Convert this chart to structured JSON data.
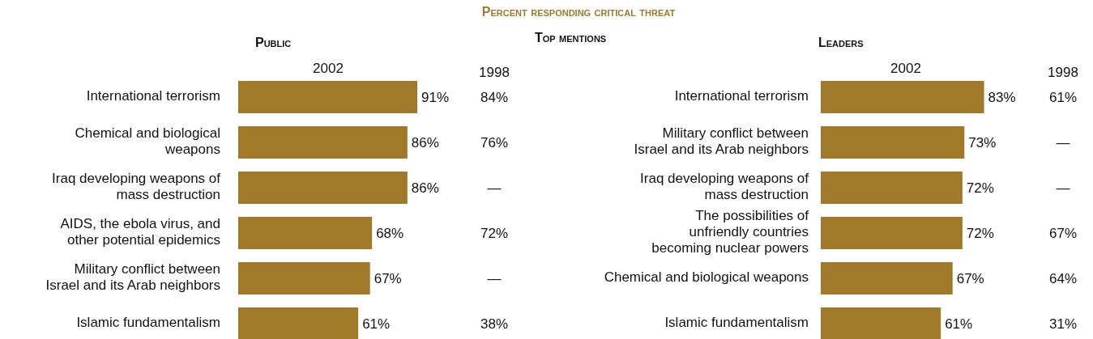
{
  "chart_data": [
    {
      "type": "bar",
      "orientation": "horizontal",
      "title": "Public",
      "annotations": [
        "Percent responding critical threat",
        "Top mentions",
        "1998",
        "84%",
        "76%",
        "—",
        "72%",
        "—",
        "38%"
      ],
      "categories": [
        "International terrorism",
        "Chemical and biological\nweapons",
        "Iraq developing weapons of\nmass destruction",
        "AIDS, the ebola virus, and\nother potential epidemics",
        "Military conflict between\nIsrael and its Arab neighbors",
        "Islamic fundamentalism"
      ],
      "series": [
        {
          "name": "2002",
          "color": "#a07a2a",
          "values": [
            91,
            86,
            86,
            68,
            67,
            61
          ],
          "value_labels": [
            "91%",
            "86%",
            "86%",
            "68%",
            "67%",
            "61%"
          ]
        }
      ]
    },
    {
      "type": "bar",
      "orientation": "horizontal",
      "title": "Leaders",
      "annotations": [
        "1998",
        "61%",
        "—",
        "—",
        "67%",
        "64%",
        "31%"
      ],
      "categories": [
        "International terrorism",
        "Military conflict between\nIsrael and its Arab neighbors",
        "Iraq developing weapons of\nmass destruction",
        "The possibilities of\nunfriendly countries\nbecoming nuclear powers",
        "Chemical and biological weapons",
        "Islamic fundamentalism"
      ],
      "series": [
        {
          "name": "2002",
          "color": "#a07a2a",
          "values": [
            83,
            73,
            72,
            72,
            67,
            61
          ],
          "value_labels": [
            "83%",
            "73%",
            "72%",
            "72%",
            "67%",
            "61%"
          ]
        }
      ]
    }
  ]
}
